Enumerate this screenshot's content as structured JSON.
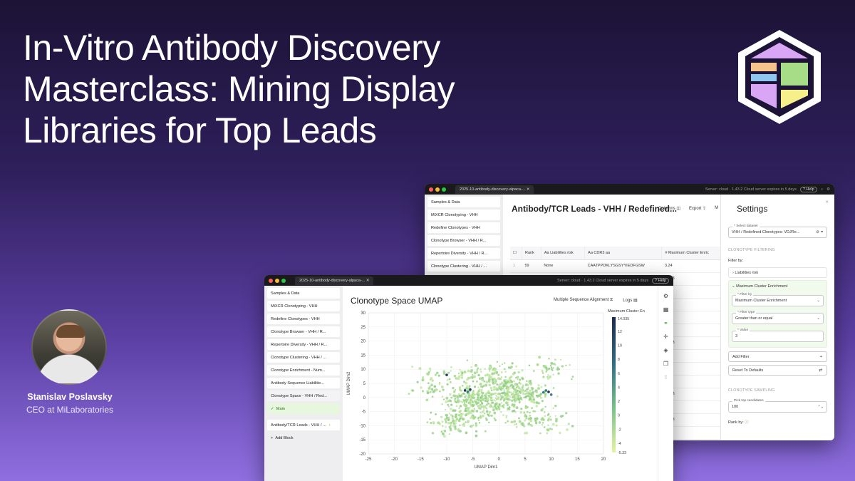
{
  "headline": {
    "line1": "In-Vitro Antibody Discovery",
    "line2": "Masterclass: Mining Display",
    "line3": "Libraries for Top Leads"
  },
  "speaker": {
    "name": "Stanislav Poslavsky",
    "role": "CEO at MiLaboratories"
  },
  "colors": {
    "accent_green": "#a6dd86",
    "brand_purple": "#6b4fc2"
  },
  "back_window": {
    "tab_title": "2025-10-antibody-discovery-alpaca-...",
    "server_status": "Server: cloud · 1.43.2 Cloud server expires in 5 days",
    "help": "Help",
    "sidebar": [
      "Samples & Data",
      "MiXCR Clonotyping - VHH",
      "Redefine Clonotypes - VHH",
      "Clonotype Browser - VHH / R...",
      "Repertoire Diversity - VHH / R...",
      "Clonotype Clustering - VHH / ..."
    ],
    "page_title": "Antibody/TCR Leads - VHH / Redefined...",
    "toolbar": {
      "columns": "Columns",
      "export": "Export",
      "more": "M"
    },
    "table": {
      "headers": [
        "#",
        "Rank",
        "Aa  Liabilities risk",
        "Aa  CDR3 aa",
        "#  Maximum Cluster Enric"
      ],
      "rows": [
        [
          "1",
          "59",
          "None",
          "CAATPPDKLYSGSYYIEDFGSW",
          "3.24"
        ],
        [
          "2",
          "57",
          "None",
          "CAKGGREYTARDW",
          "10.53"
        ],
        [
          "",
          "",
          "",
          "",
          "5.54"
        ],
        [
          "",
          "",
          "",
          "",
          "3.00"
        ],
        [
          "",
          "",
          "",
          "",
          "5.54"
        ],
        [
          "",
          "",
          "",
          "",
          "5.51"
        ],
        [
          "",
          "",
          "",
          "",
          "10.53"
        ],
        [
          "",
          "",
          "",
          "",
          "3.24"
        ],
        [
          "",
          "",
          "",
          "",
          "5.51"
        ],
        [
          "",
          "",
          "",
          "",
          "5.54"
        ],
        [
          "",
          "",
          "",
          "",
          "10.53"
        ],
        [
          "",
          "",
          "",
          "",
          "5.54"
        ],
        [
          "",
          "",
          "",
          "",
          "10.53"
        ],
        [
          "",
          "",
          "",
          "",
          "5.51"
        ],
        [
          "",
          "",
          "",
          "",
          "10.53"
        ]
      ]
    },
    "settings": {
      "title": "Settings",
      "select_dataset_label": "* Select dataset",
      "select_dataset_value": "VHH / Redefined Clonotypes: VDJRe...",
      "filtering_section": "CLONOTYPE FILTERING",
      "filter_by": "Filter by:",
      "filter_items": [
        "Liabilities risk",
        "Maximum Cluster Enrichment"
      ],
      "filter_by_label": "* Filter by",
      "filter_by_value": "Maximum Cluster Enrichment",
      "filter_type_label": "* Filter type",
      "filter_type_value": "Greater than or equal",
      "value_label": "* Value",
      "value_value": "3",
      "add_filter": "Add Filter",
      "reset_defaults": "Reset To Defaults",
      "sampling_section": "CLONOTYPE SAMPLING",
      "pick_top_label": "Pick top candidates",
      "pick_top_value": "100",
      "rank_by": "Rank by:"
    }
  },
  "front_window": {
    "tab_title": "2025-10-antibody-discovery-alpaca-...",
    "server_status": "Server: cloud · 1.43.2 Cloud server expires in 5 days",
    "help": "Help",
    "sidebar": [
      "Samples & Data",
      "MiXCR Clonotyping - VHH",
      "Redefine Clonotypes - VHH",
      "Clonotype Browser - VHH / R...",
      "Repertoire Diversity - VHH / R...",
      "Clonotype Clustering - VHH / ...",
      "Clonotype Enrichment - Num...",
      "Antibody Sequence Liabilitie...",
      "Clonotype Space - VHH / Red..."
    ],
    "sidebar_sub": "Main",
    "sidebar_after": "Antibody/TCR Leads - VHH / ...",
    "add_block": "Add Block",
    "page_title": "Clonotype Space UMAP",
    "msa": "Multiple Sequence Alignment",
    "logs": "Logs"
  },
  "chart_data": {
    "type": "scatter",
    "title": "",
    "xlabel": "UMAP Dim1",
    "ylabel": "UMAP Dim2",
    "xlim": [
      -25,
      20
    ],
    "ylim": [
      -20,
      30
    ],
    "xticks": [
      -25,
      -20,
      -15,
      -10,
      -5,
      0,
      5,
      10,
      15,
      20
    ],
    "yticks": [
      -20,
      -15,
      -10,
      -5,
      0,
      5,
      10,
      15,
      20,
      25,
      30
    ],
    "colorbar": {
      "label": "Maximum Cluster En",
      "max": 14.035,
      "min": -5.33,
      "ticks": [
        12,
        10,
        8,
        6,
        4,
        2,
        0,
        -2,
        -4
      ],
      "max_label": "14.035",
      "min_label": "-5.33"
    },
    "clusters": [
      {
        "x": 0,
        "y": 0,
        "sx": 7,
        "sy": 7,
        "n": 300
      },
      {
        "x": -6,
        "y": -2,
        "sx": 4,
        "sy": 5,
        "n": 160
      },
      {
        "x": 4,
        "y": 2,
        "sx": 5,
        "sy": 3,
        "n": 120
      },
      {
        "x": -2,
        "y": 8,
        "sx": 8,
        "sy": 4,
        "n": 110
      },
      {
        "x": -8,
        "y": -9,
        "sx": 5,
        "sy": 4,
        "n": 90
      },
      {
        "x": 8,
        "y": -8,
        "sx": 5,
        "sy": 4,
        "n": 80
      },
      {
        "x": 10,
        "y": 10,
        "sx": 3,
        "sy": 4,
        "n": 40
      },
      {
        "x": -13,
        "y": 5,
        "sx": 3,
        "sy": 6,
        "n": 50
      }
    ],
    "highlight_points": [
      {
        "x": -6.5,
        "y": 2.5,
        "v": 12
      },
      {
        "x": -6.0,
        "y": 2.0,
        "v": 10
      },
      {
        "x": -5.5,
        "y": 2.8,
        "v": 13
      },
      {
        "x": 9.0,
        "y": 2.5,
        "v": 11
      },
      {
        "x": 9.5,
        "y": 2.0,
        "v": 13
      },
      {
        "x": 8.5,
        "y": 1.8,
        "v": 9
      },
      {
        "x": -10.0,
        "y": 8.0,
        "v": 12
      },
      {
        "x": 10.0,
        "y": 1.0,
        "v": 8
      }
    ]
  }
}
